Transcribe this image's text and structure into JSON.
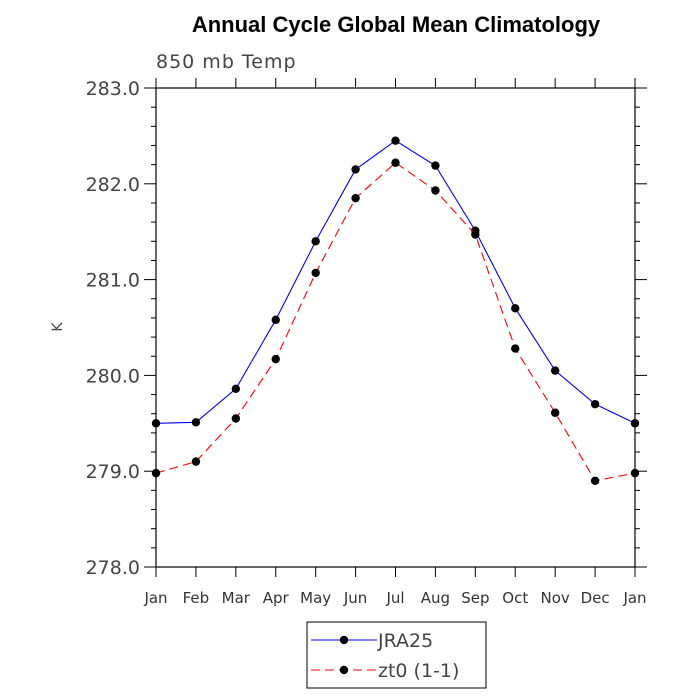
{
  "chart_data": {
    "type": "line",
    "title": "Annual Cycle Global Mean Climatology",
    "subtitle": "850 mb Temp",
    "xlabel": "",
    "ylabel": "K",
    "categories": [
      "Jan",
      "Feb",
      "Mar",
      "Apr",
      "May",
      "Jun",
      "Jul",
      "Aug",
      "Sep",
      "Oct",
      "Nov",
      "Dec",
      "Jan"
    ],
    "ylim": [
      278.0,
      283.0
    ],
    "yticks": [
      "278.0",
      "279.0",
      "280.0",
      "281.0",
      "282.0",
      "283.0"
    ],
    "grid": false,
    "legend_position": "bottom-center",
    "series": [
      {
        "name": "JRA25",
        "color": "#0000ff",
        "line_style": "solid",
        "values": [
          279.5,
          279.51,
          279.86,
          280.58,
          281.4,
          282.15,
          282.45,
          282.19,
          281.51,
          280.7,
          280.05,
          279.7,
          279.5
        ]
      },
      {
        "name": "zt0 (1-1)",
        "color": "#ff0000",
        "line_style": "dashed",
        "values": [
          278.98,
          279.1,
          279.55,
          280.17,
          281.07,
          281.85,
          282.22,
          281.93,
          281.47,
          280.28,
          279.61,
          278.9,
          278.98
        ]
      }
    ]
  }
}
